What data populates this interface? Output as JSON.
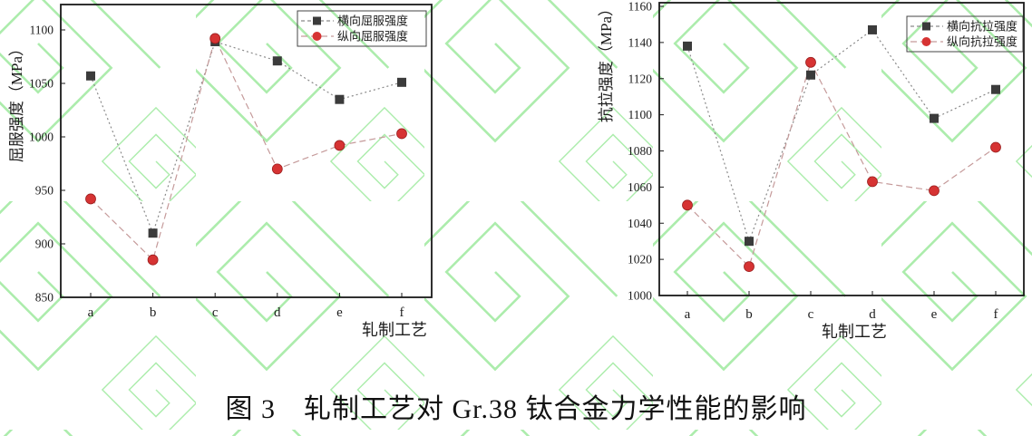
{
  "page": {
    "background_color": "#ffffff",
    "watermark_color": "#97e897",
    "axis_color": "#1a1a1a"
  },
  "caption": "图 3　轧制工艺对 Gr.38 钛合金力学性能的影响",
  "chart_data": [
    {
      "type": "line",
      "title": "",
      "xlabel": "轧制工艺",
      "ylabel": "屈服强度（MPa）",
      "categories": [
        "a",
        "b",
        "c",
        "d",
        "e",
        "f"
      ],
      "ylim": [
        850,
        1100
      ],
      "yticks": [
        850,
        900,
        950,
        1000,
        1050,
        1100
      ],
      "grid": false,
      "legend_position": "top-right",
      "series": [
        {
          "name": "横向屈服强度",
          "marker": "square",
          "marker_color": "#3b3b3b",
          "line_color": "#8a8a8a",
          "line_style": "dotted",
          "values": [
            1057,
            910,
            1089,
            1071,
            1035,
            1051
          ]
        },
        {
          "name": "纵向屈服强度",
          "marker": "circle",
          "marker_color": "#d63333",
          "marker_edge_color": "#9c2020",
          "line_color": "#c59a9a",
          "line_style": "dashed",
          "values": [
            942,
            885,
            1092,
            970,
            992,
            1003
          ]
        }
      ]
    },
    {
      "type": "line",
      "title": "",
      "xlabel": "轧制工艺",
      "ylabel": "抗拉强度（MPa）",
      "categories": [
        "a",
        "b",
        "c",
        "d",
        "e",
        "f"
      ],
      "ylim": [
        1000,
        1160
      ],
      "yticks": [
        1000,
        1020,
        1040,
        1060,
        1080,
        1100,
        1120,
        1140,
        1160
      ],
      "grid": false,
      "legend_position": "top-right",
      "series": [
        {
          "name": "横向抗拉强度",
          "marker": "square",
          "marker_color": "#3b3b3b",
          "line_color": "#8a8a8a",
          "line_style": "dotted",
          "values": [
            1138,
            1030,
            1122,
            1147,
            1098,
            1114
          ]
        },
        {
          "name": "纵向抗拉强度",
          "marker": "circle",
          "marker_color": "#d63333",
          "marker_edge_color": "#9c2020",
          "line_color": "#c59a9a",
          "line_style": "dashed",
          "values": [
            1050,
            1016,
            1129,
            1063,
            1058,
            1082
          ]
        }
      ]
    }
  ]
}
